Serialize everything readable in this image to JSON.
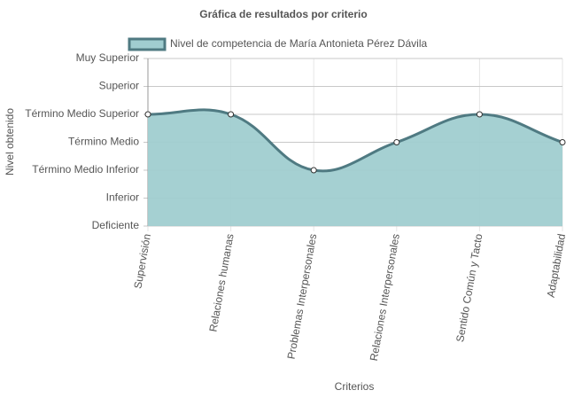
{
  "chart_data": {
    "type": "line",
    "title": "Gráfica de resultados por criterio",
    "x_label": "Criterios",
    "y_label": "Nivel obtenido",
    "categories": [
      "Supervisión",
      "Relaciones humanas",
      "Problemas Interpersonales",
      "Relaciones Interpersonales",
      "Sentido Común y Tacto",
      "Adaptabilidad"
    ],
    "series": [
      {
        "name": "Nivel de competencia de María Antonieta Pérez Dávila",
        "color": "#4f7a82",
        "fill": "#a0cdd0",
        "values": [
          4,
          4,
          2,
          3,
          4,
          3
        ]
      }
    ],
    "ylim": [
      0,
      6
    ],
    "yticks": [
      {
        "value": 0,
        "label": "Deficiente"
      },
      {
        "value": 1,
        "label": "Inferior"
      },
      {
        "value": 2,
        "label": "Término Medio Inferior"
      },
      {
        "value": 3,
        "label": "Término Medio"
      },
      {
        "value": 4,
        "label": "Término Medio Superior"
      },
      {
        "value": 5,
        "label": "Superior"
      },
      {
        "value": 6,
        "label": "Muy Superior"
      }
    ],
    "grid": true,
    "legend": "top"
  }
}
